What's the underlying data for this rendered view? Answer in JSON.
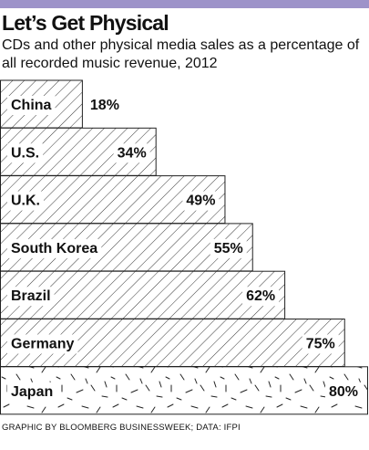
{
  "title": "Let’s Get Physical",
  "subtitle": "CDs and other physical media sales as a percentage of all recorded music revenue, 2012",
  "footer": "GRAPHIC BY BLOOMBERG BUSINESSWEEK; DATA: IFPI",
  "chart_data": {
    "type": "bar",
    "orientation": "horizontal",
    "categories": [
      "China",
      "U.S.",
      "U.K.",
      "South Korea",
      "Brazil",
      "Germany",
      "Japan"
    ],
    "values": [
      18,
      34,
      49,
      55,
      62,
      75,
      80
    ],
    "data_labels": [
      "18%",
      "34%",
      "49%",
      "55%",
      "62%",
      "75%",
      "80%"
    ],
    "unit": "%",
    "xlim": [
      0,
      80
    ],
    "highlight": "Japan",
    "grid": false
  }
}
